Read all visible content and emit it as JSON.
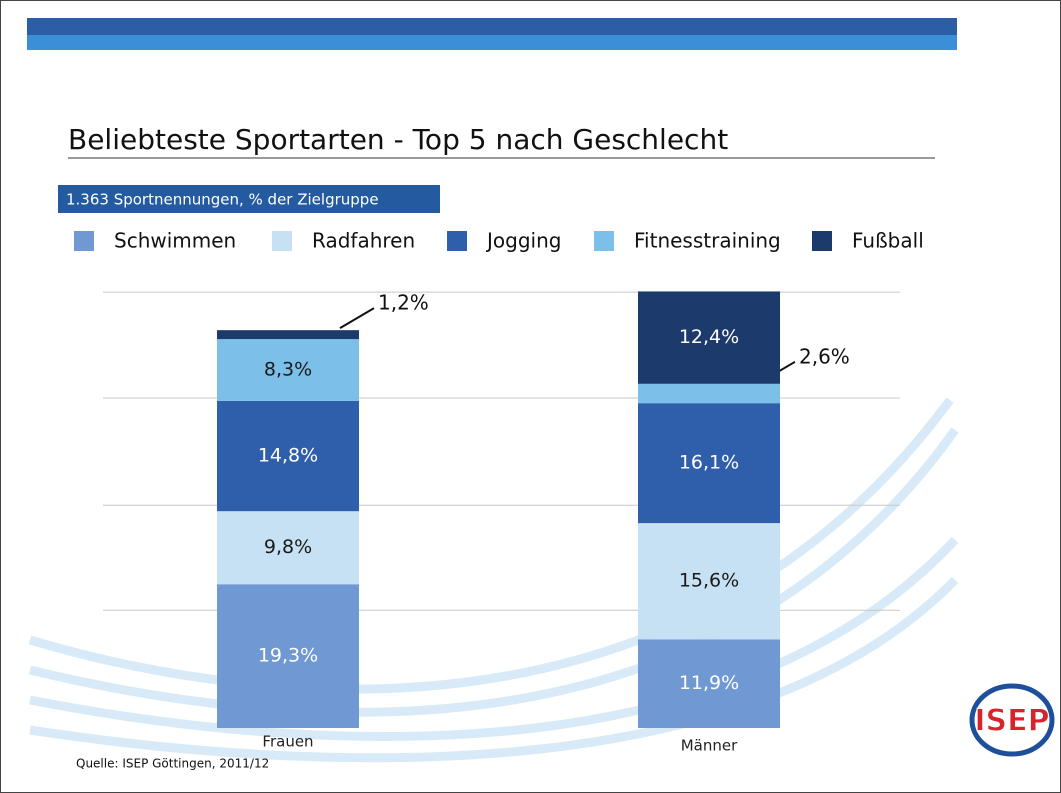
{
  "chart_data": {
    "type": "stacked-bar",
    "title": "Beliebteste Sportarten - Top 5 nach Geschlecht",
    "subtitle": "1.363 Sportnennungen, % der Zielgruppe",
    "categories": [
      "Frauen",
      "Männer"
    ],
    "series": [
      {
        "name": "Schwimmen",
        "color": "#7098d2",
        "values": [
          19.3,
          11.9
        ],
        "value_labels": [
          "19,3%",
          "11,9%"
        ]
      },
      {
        "name": "Radfahren",
        "color": "#c6e1f4",
        "values": [
          9.8,
          15.6
        ],
        "value_labels": [
          "9,8%",
          "15,6%"
        ]
      },
      {
        "name": "Jogging",
        "color": "#2f5fab",
        "values": [
          14.8,
          16.1
        ],
        "value_labels": [
          "14,8%",
          "16,1%"
        ]
      },
      {
        "name": "Fitnesstraining",
        "color": "#7cbfe8",
        "values": [
          8.3,
          2.6
        ],
        "value_labels": [
          "8,3%",
          "2,6%"
        ]
      },
      {
        "name": "Fußball",
        "color": "#1d3a6c",
        "values": [
          1.2,
          12.4
        ],
        "value_labels": [
          "1,2%",
          "12,4%"
        ]
      }
    ],
    "ylim": [
      0,
      60
    ],
    "yticks": [
      15.8,
      29.9,
      44.3,
      58.5
    ],
    "grid": true,
    "source": "Quelle: ISEP Göttingen, 2011/12",
    "logo": "ISEP"
  }
}
